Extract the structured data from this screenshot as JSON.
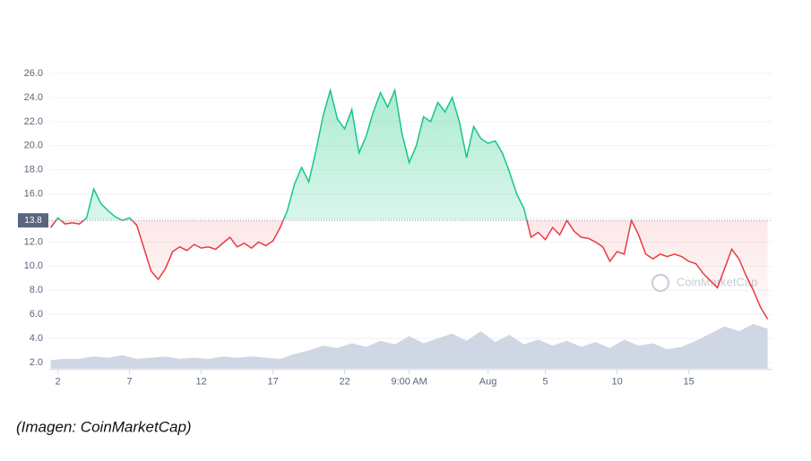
{
  "chart_data": {
    "type": "line",
    "x": [
      1.5,
      2,
      2.5,
      3,
      3.5,
      4,
      4.5,
      5,
      5.5,
      6,
      6.5,
      7,
      7.5,
      8,
      8.5,
      9,
      9.5,
      10,
      10.5,
      11,
      11.5,
      12,
      12.5,
      13,
      13.5,
      14,
      14.5,
      15,
      15.5,
      16,
      16.5,
      17,
      17.5,
      18,
      18.5,
      19,
      19.5,
      20,
      20.5,
      21,
      21.5,
      22,
      22.5,
      23,
      23.5,
      24,
      24.5,
      25,
      25.5,
      26,
      26.5,
      27,
      27.5,
      28,
      28.5,
      29,
      29.5,
      30,
      30.5,
      31,
      31.5,
      32,
      32.5,
      33,
      33.5,
      34,
      34.5,
      35,
      35.5,
      36,
      36.5,
      37,
      37.5,
      38,
      38.5,
      39,
      39.5,
      40,
      40.5,
      41,
      41.5,
      42,
      42.5,
      43,
      43.5,
      44,
      44.5,
      45,
      45.5,
      46,
      46.5,
      47,
      47.5,
      48,
      48.5,
      49,
      49.5,
      50,
      50.5,
      51,
      51.5
    ],
    "values": [
      13.2,
      14.0,
      13.5,
      13.6,
      13.5,
      14.0,
      16.4,
      15.2,
      14.6,
      14.1,
      13.8,
      14.0,
      13.4,
      11.5,
      9.6,
      8.9,
      9.8,
      11.2,
      11.6,
      11.3,
      11.8,
      11.5,
      11.6,
      11.4,
      11.9,
      12.4,
      11.6,
      11.9,
      11.5,
      12.0,
      11.7,
      12.1,
      13.2,
      14.6,
      16.8,
      18.2,
      17.0,
      19.6,
      22.5,
      24.6,
      22.2,
      21.4,
      23.0,
      19.4,
      20.8,
      22.8,
      24.4,
      23.2,
      24.6,
      21.0,
      18.6,
      20.0,
      22.4,
      22.0,
      23.6,
      22.8,
      24.0,
      22.0,
      19.0,
      21.6,
      20.6,
      20.2,
      20.4,
      19.4,
      17.8,
      16.0,
      14.8,
      12.4,
      12.8,
      12.2,
      13.2,
      12.6,
      13.8,
      12.9,
      12.4,
      12.3,
      12.0,
      11.6,
      10.4,
      11.2,
      11.0,
      13.8,
      12.6,
      11.0,
      10.6,
      11.0,
      10.8,
      11.0,
      10.8,
      10.4,
      10.2,
      9.4,
      8.8,
      8.2,
      9.8,
      11.4,
      10.6,
      9.2,
      8.0,
      6.6,
      5.6
    ],
    "baseline": 13.8,
    "up_color": "#16c784",
    "down_color": "#ea3943",
    "volume": {
      "x": [
        1.5,
        2.5,
        3.5,
        4.5,
        5.5,
        6.5,
        7.5,
        8.5,
        9.5,
        10.5,
        11.5,
        12.5,
        13.5,
        14.5,
        15.5,
        16.5,
        17.5,
        18.5,
        19.5,
        20.5,
        21.5,
        22.5,
        23.5,
        24.5,
        25.5,
        26.5,
        27.5,
        28.5,
        29.5,
        30.5,
        31.5,
        32.5,
        33.5,
        34.5,
        35.5,
        36.5,
        37.5,
        38.5,
        39.5,
        40.5,
        41.5,
        42.5,
        43.5,
        44.5,
        45.5,
        46.5,
        47.5,
        48.5,
        49.5,
        50.5,
        51.5
      ],
      "values": [
        2.2,
        2.3,
        2.3,
        2.5,
        2.4,
        2.6,
        2.3,
        2.4,
        2.5,
        2.3,
        2.4,
        2.3,
        2.5,
        2.4,
        2.5,
        2.4,
        2.3,
        2.7,
        3.0,
        3.4,
        3.2,
        3.6,
        3.3,
        3.8,
        3.5,
        4.2,
        3.6,
        4.0,
        4.4,
        3.8,
        4.6,
        3.7,
        4.3,
        3.5,
        3.9,
        3.4,
        3.8,
        3.3,
        3.7,
        3.2,
        3.9,
        3.4,
        3.6,
        3.1,
        3.3,
        3.8,
        4.4,
        5.0,
        4.6,
        5.2,
        4.8
      ],
      "color": "#cfd6e4"
    },
    "xlim": [
      1.4,
      51.8
    ],
    "xticks": [
      2,
      7,
      12,
      17,
      22,
      {
        "value": 26.5,
        "label": "9:00 AM"
      },
      {
        "value": 32,
        "label": "Aug"
      },
      {
        "value": 36,
        "label": "5"
      },
      {
        "value": 41,
        "label": "10"
      },
      {
        "value": 46,
        "label": "15"
      }
    ],
    "ylim": [
      1.5,
      26.5
    ],
    "yticks": [
      {
        "value": 2,
        "label": "2.0"
      },
      {
        "value": 4,
        "label": "4.0"
      },
      {
        "value": 6,
        "label": "6.0"
      },
      {
        "value": 8,
        "label": "8.0"
      },
      {
        "value": 10,
        "label": "10.0"
      },
      {
        "value": 12,
        "label": "12.0"
      },
      {
        "value": 14,
        "label": "14.0"
      },
      {
        "value": 16,
        "label": "16.0"
      },
      {
        "value": 18,
        "label": "18.0"
      },
      {
        "value": 20,
        "label": "20.0"
      },
      {
        "value": 22,
        "label": "22.0"
      },
      {
        "value": 24,
        "label": "24.0"
      },
      {
        "value": 26,
        "label": "26.0"
      }
    ],
    "grid": true,
    "watermark": "CoinMarketCap"
  },
  "caption": "(Imagen: CoinMarketCap)"
}
